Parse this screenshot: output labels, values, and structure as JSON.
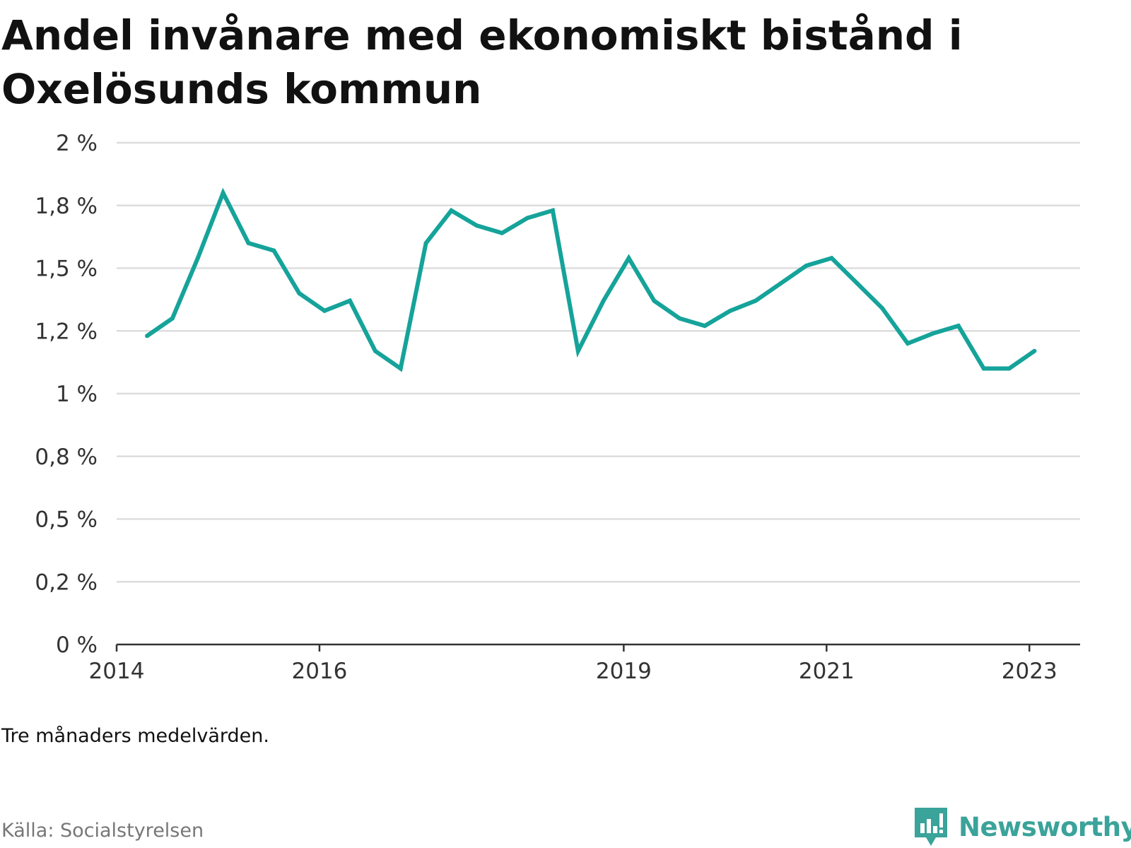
{
  "title": "Andel invånare med ekonomiskt bistånd i Oxelösunds kommun",
  "note": "Tre månaders medelvärden.",
  "source": "Källa: Socialstyrelsen",
  "brand": {
    "name": "Newsworthy",
    "logo_icon": "bar-chart-speech-bubble-icon"
  },
  "colors": {
    "line": "#15a39a",
    "grid": "#dddddd",
    "axis": "#333333",
    "brand": "#3aa39a"
  },
  "chart_data": {
    "type": "line",
    "title": "Andel invånare med ekonomiskt bistånd i Oxelösunds kommun",
    "xlabel": "",
    "ylabel": "",
    "xlim": [
      2014.0,
      2023.5
    ],
    "ylim": [
      0,
      2
    ],
    "grid": true,
    "legend": "none",
    "y_ticks": [
      {
        "value": 0,
        "label": "0 %"
      },
      {
        "value": 0.25,
        "label": "0,2 %"
      },
      {
        "value": 0.5,
        "label": "0,5 %"
      },
      {
        "value": 0.75,
        "label": "0,8 %"
      },
      {
        "value": 1.0,
        "label": "1 %"
      },
      {
        "value": 1.25,
        "label": "1,2 %"
      },
      {
        "value": 1.5,
        "label": "1,5 %"
      },
      {
        "value": 1.75,
        "label": "1,8 %"
      },
      {
        "value": 2.0,
        "label": "2 %"
      }
    ],
    "x_ticks": [
      {
        "value": 2014.0,
        "label": "2014"
      },
      {
        "value": 2016.0,
        "label": "2016"
      },
      {
        "value": 2019.0,
        "label": "2019"
      },
      {
        "value": 2021.0,
        "label": "2021"
      },
      {
        "value": 2023.0,
        "label": "2023"
      }
    ],
    "series": [
      {
        "x": [
          2014.3,
          2014.55,
          2014.8,
          2015.05,
          2015.3,
          2015.55,
          2015.8,
          2016.05,
          2016.3,
          2016.55,
          2016.8,
          2017.05,
          2017.3,
          2017.55,
          2017.8,
          2018.05,
          2018.3,
          2018.55,
          2018.8,
          2019.05,
          2019.3,
          2019.55,
          2019.8,
          2020.05,
          2020.3,
          2020.55,
          2020.8,
          2021.05,
          2021.3,
          2021.55,
          2021.8,
          2022.05,
          2022.3,
          2022.55,
          2022.8,
          2023.05
        ],
        "values": [
          1.23,
          1.3,
          1.54,
          1.8,
          1.6,
          1.57,
          1.4,
          1.33,
          1.37,
          1.17,
          1.1,
          1.6,
          1.73,
          1.67,
          1.64,
          1.7,
          1.73,
          1.17,
          1.37,
          1.54,
          1.37,
          1.3,
          1.27,
          1.33,
          1.37,
          1.44,
          1.51,
          1.54,
          1.44,
          1.34,
          1.2,
          1.24,
          1.27,
          1.1,
          1.1,
          1.17
        ]
      }
    ]
  }
}
